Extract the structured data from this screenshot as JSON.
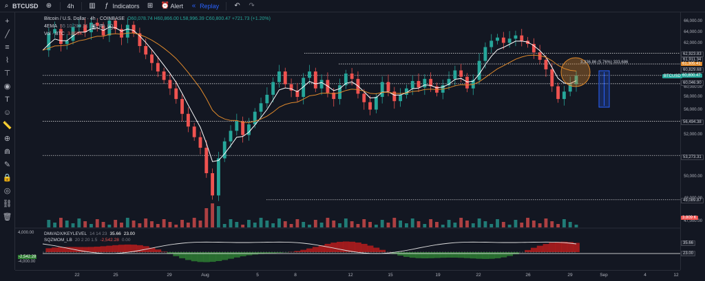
{
  "toolbar": {
    "symbol": "BTCUSD",
    "interval": "4h",
    "indicators_label": "Indicators",
    "alert_label": "Alert",
    "replay_label": "Replay"
  },
  "legend": {
    "title": "Bitcoin / U.S. Dollar · 4h · COINBASE",
    "ohlc": "O60,078.74 H60,866.00 L58,996.39 C60,800.47 +721.73 (+1.20%)",
    "ema_label": "4EMA",
    "ema_params": "55 10 200 21",
    "vol_label": "Vol · BTC",
    "vol_value": "3.809K"
  },
  "indicators": {
    "dmi_label": "DMI/ADX/KEYLEVEL",
    "dmi_params": "14 14 23",
    "dmi_v1": "35.66",
    "dmi_v2": "23.00",
    "sqz_label": "SQZMOM_LB",
    "sqz_params": "20 2 20 1.5",
    "sqz_value": "-2,542.28",
    "sqz_v2": "0.00",
    "left_axis": [
      "4,000.00",
      "-2,542.28",
      "-4,000.00"
    ]
  },
  "price_axis": {
    "ticks": [
      "66,000.00",
      "64,000.00",
      "62,000.00",
      "60,000.00",
      "58,000.00",
      "56,000.00",
      "54,000.00",
      "52,000.00",
      "50,000.00",
      "48,000.00",
      "47,000.00"
    ],
    "tags": [
      {
        "value": "62,923.83",
        "kind": "level"
      },
      {
        "value": "61,911.34",
        "kind": "level"
      },
      {
        "value": "61,305.41",
        "kind": "orange"
      },
      {
        "value": "60,829.68",
        "kind": "level"
      },
      {
        "value": "60,800.47",
        "kind": "current"
      },
      {
        "value": "60,046.90",
        "kind": "level"
      },
      {
        "value": "56,494.38",
        "kind": "level"
      },
      {
        "value": "53,273.31",
        "kind": "level"
      },
      {
        "value": "49,089.87",
        "kind": "level"
      },
      {
        "value": "3.809 K",
        "kind": "volume"
      },
      {
        "value": "35.66",
        "kind": "ind"
      },
      {
        "value": "23.00",
        "kind": "ind"
      }
    ],
    "symbol_badge": "BTCUSD"
  },
  "annotation": "3,336.86 (5.76%) 333,686",
  "time_axis": [
    "22",
    "25",
    "29",
    "Aug",
    "5",
    "8",
    "12",
    "15",
    "19",
    "22",
    "26",
    "29",
    "Sep",
    "4",
    "12"
  ],
  "colors": {
    "up": "#26a69a",
    "down": "#ef5350",
    "ema_fast": "#ffffff",
    "ema_slow": "#e08a2c",
    "background": "#131722",
    "accent": "#2962ff"
  }
}
